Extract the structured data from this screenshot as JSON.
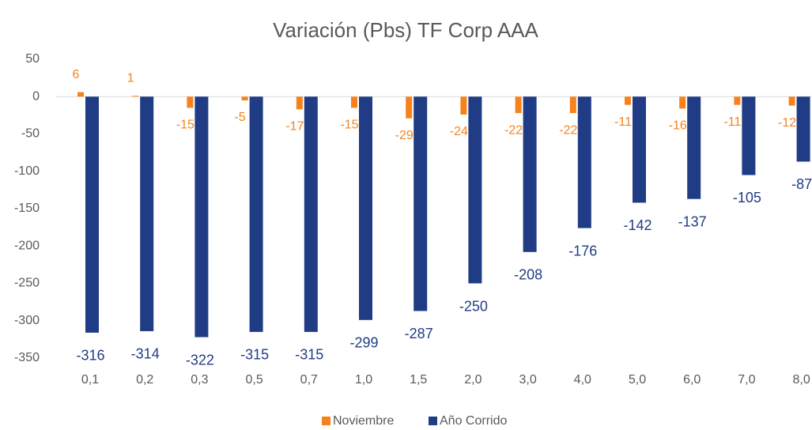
{
  "chart_data": {
    "type": "bar",
    "title": "Variación (Pbs) TF Corp AAA",
    "categories": [
      "0,1",
      "0,2",
      "0,3",
      "0,5",
      "0,7",
      "1,0",
      "1,5",
      "2,0",
      "3,0",
      "4,0",
      "5,0",
      "6,0",
      "7,0",
      "8,0"
    ],
    "series": [
      {
        "name": "Noviembre",
        "color": "#f7821b",
        "values": [
          6,
          1,
          -15,
          -5,
          -17,
          -15,
          -29,
          -24,
          -22,
          -22,
          -11,
          -16,
          -11,
          -12
        ]
      },
      {
        "name": "Año Corrido",
        "color": "#203c85",
        "values": [
          -316,
          -314,
          -322,
          -315,
          -315,
          -299,
          -287,
          -250,
          -208,
          -176,
          -142,
          -137,
          -105,
          -87
        ]
      }
    ],
    "ylim": [
      -350,
      50
    ],
    "yticks": [
      50,
      0,
      -50,
      -100,
      -150,
      -200,
      -250,
      -300,
      -350
    ],
    "grid": false,
    "legend": "bottom"
  }
}
